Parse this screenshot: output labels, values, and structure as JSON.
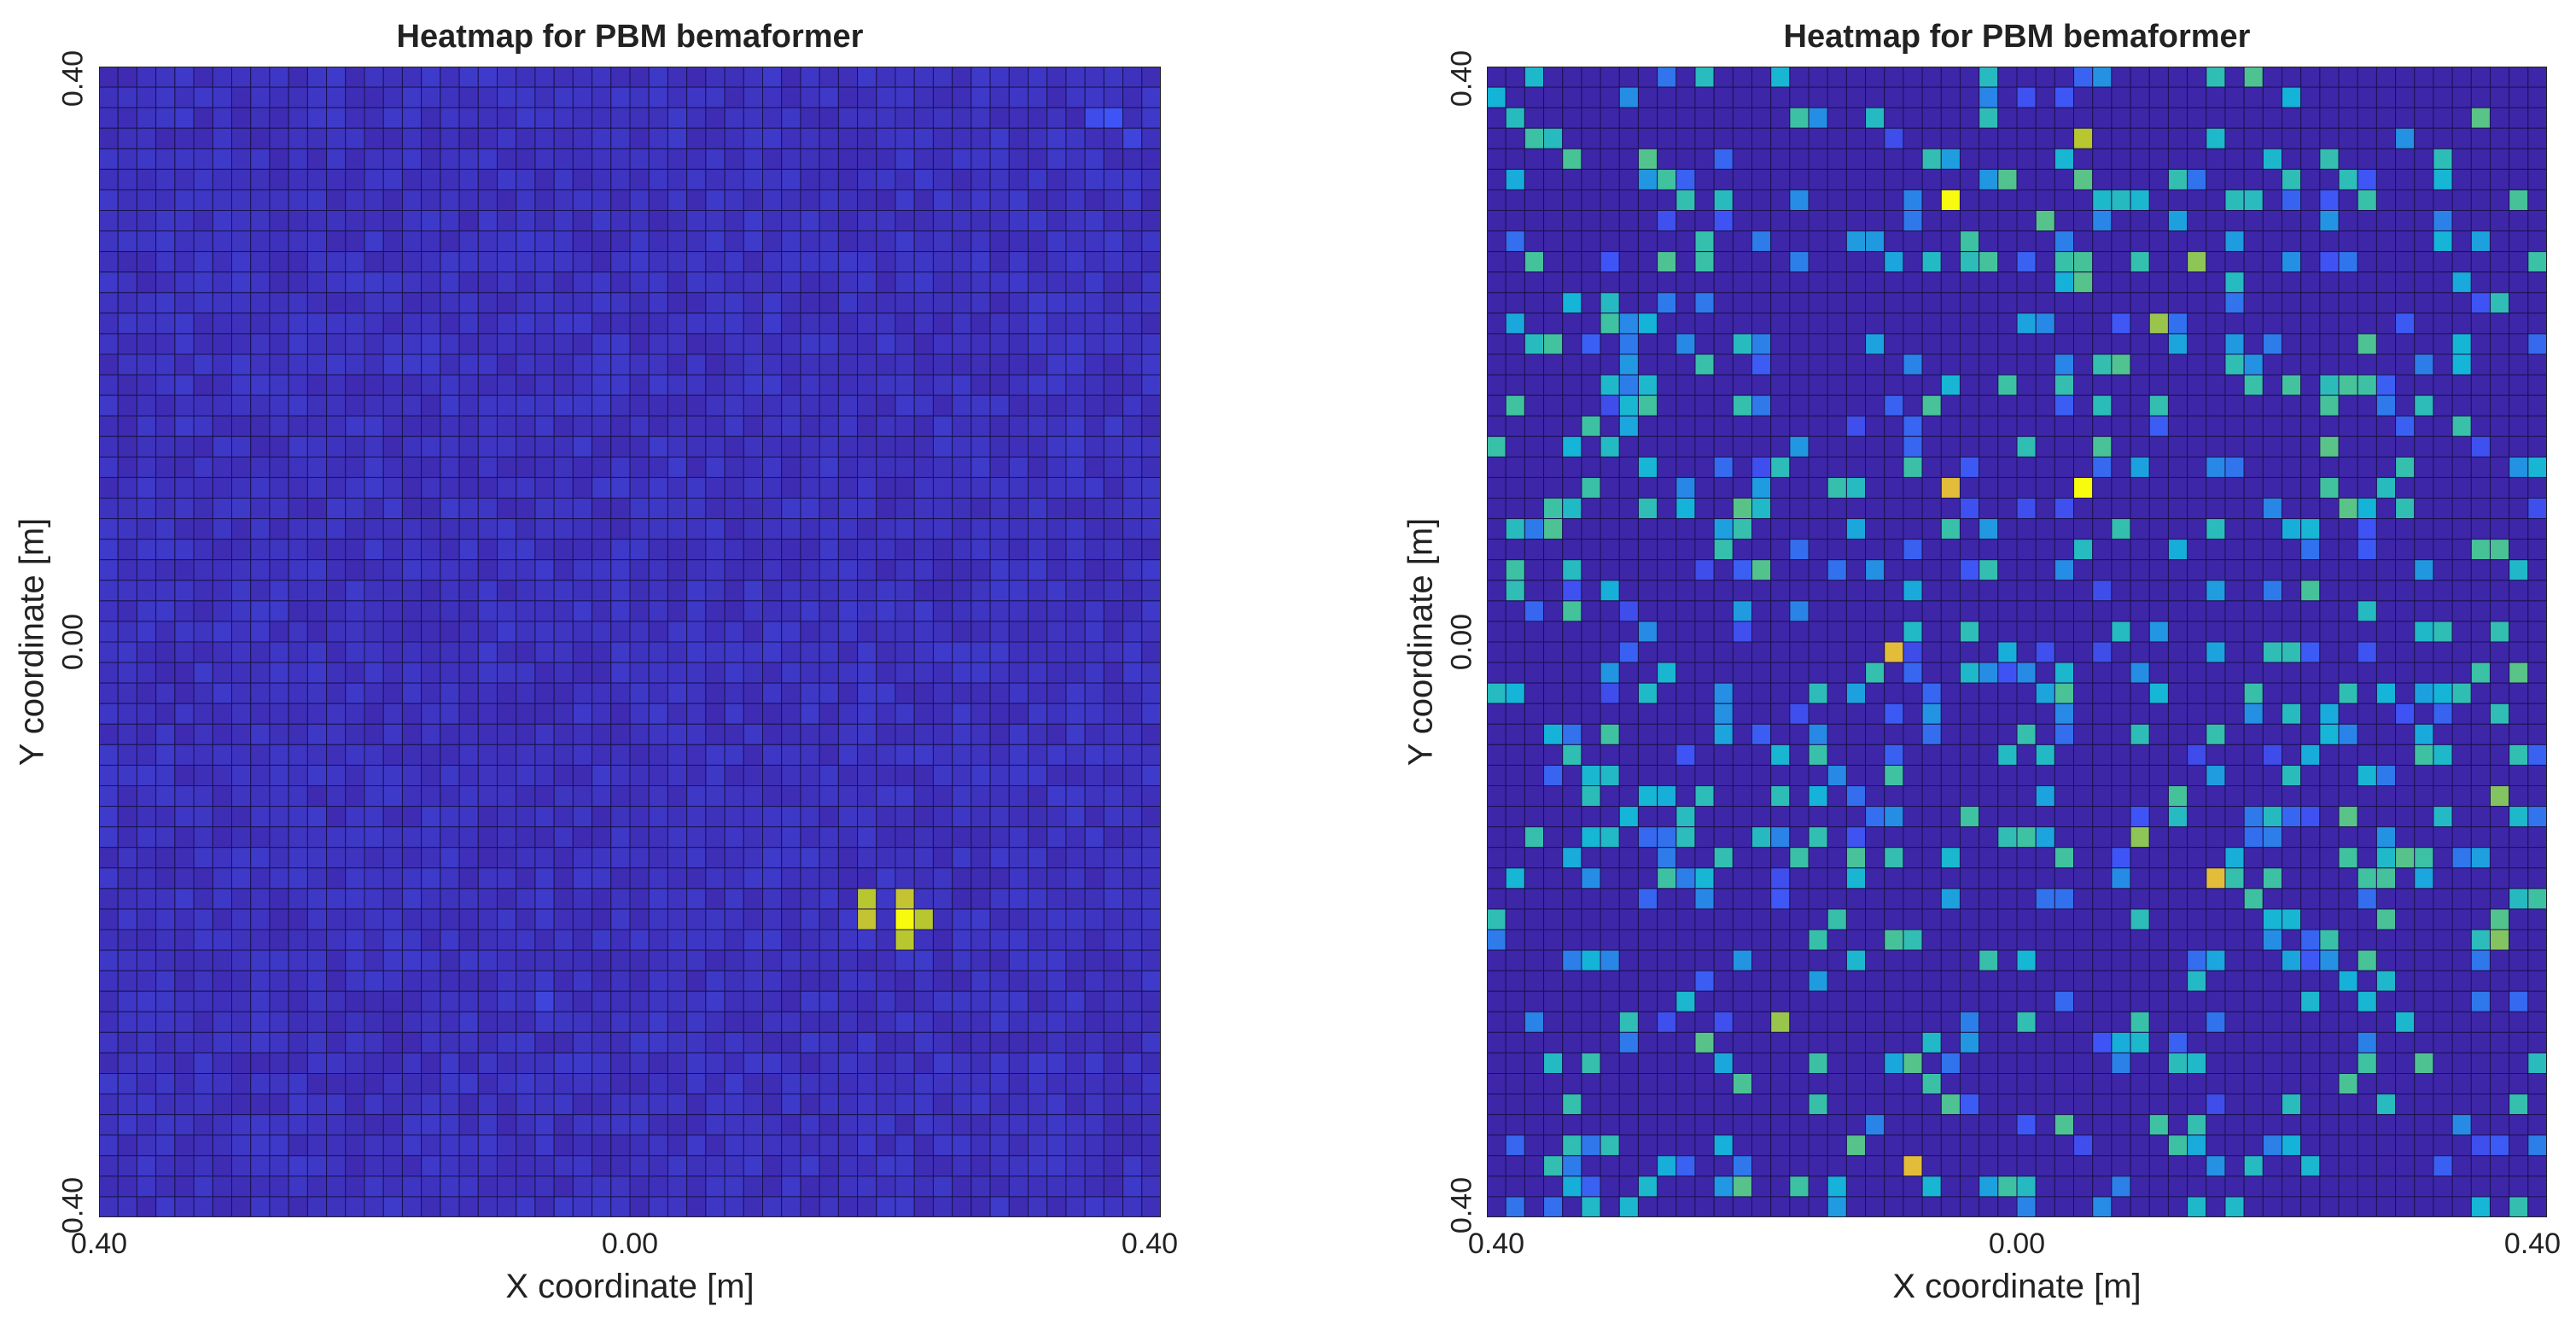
{
  "colors": {
    "low": "#3e26a8",
    "mid_blue": "#3f54f6",
    "cyan": "#14b5d8",
    "teal": "#40c29f",
    "green_yellow": "#b8c630",
    "orange": "#f6b93d",
    "yellow": "#f9fb0e",
    "grid_line": "#1a1352"
  },
  "chart_data": [
    {
      "type": "heatmap",
      "title": "Heatmap for PBM bemaformer",
      "xlabel": "X coordinate [m]",
      "ylabel": "Y coordinate [m]",
      "xlim": [
        -0.4,
        0.4
      ],
      "ylim": [
        -0.4,
        0.4
      ],
      "x_tick_labels": [
        "0.40",
        "0.00",
        "0.40"
      ],
      "y_tick_labels": [
        "0.40",
        "0.00",
        "0.40"
      ],
      "grid": true,
      "colormap": "parula",
      "grid_size": [
        56,
        56
      ],
      "background_value": 0.02,
      "noise_level": 0.06,
      "hotspots": [
        {
          "x": 0.2,
          "y": -0.19,
          "value": 1.0
        },
        {
          "x": 0.2,
          "y": -0.175,
          "value": 0.8
        },
        {
          "x": 0.185,
          "y": -0.175,
          "value": 0.78
        },
        {
          "x": 0.185,
          "y": -0.19,
          "value": 0.8
        },
        {
          "x": 0.215,
          "y": -0.19,
          "value": 0.78
        },
        {
          "x": 0.2,
          "y": -0.205,
          "value": 0.78
        },
        {
          "x": 0.36,
          "y": 0.37,
          "value": 0.18
        },
        {
          "x": 0.345,
          "y": 0.36,
          "value": 0.15
        },
        {
          "x": 0.375,
          "y": 0.355,
          "value": 0.12
        },
        {
          "x": -0.06,
          "y": -0.255,
          "value": 0.12
        }
      ]
    },
    {
      "type": "heatmap",
      "title": "Heatmap for PBM bemaformer",
      "xlabel": "X coordinate [m]",
      "ylabel": "Y coordinate [m]",
      "xlim": [
        -0.4,
        0.4
      ],
      "ylim": [
        -0.4,
        0.4
      ],
      "x_tick_labels": [
        "0.40",
        "0.00",
        "0.40"
      ],
      "y_tick_labels": [
        "0.40",
        "0.00",
        "0.40"
      ],
      "grid": true,
      "colormap": "parula",
      "grid_size": [
        56,
        56
      ],
      "background_value": 0.0,
      "scatter_fraction": 0.2,
      "scatter_value_range": [
        0.15,
        0.6
      ],
      "hotspots": [
        {
          "x": -0.045,
          "y": 0.305,
          "value": 1.0
        },
        {
          "x": 0.045,
          "y": 0.105,
          "value": 1.0
        },
        {
          "x": -0.045,
          "y": 0.105,
          "value": 0.85
        },
        {
          "x": -0.09,
          "y": 0.0,
          "value": 0.85
        },
        {
          "x": 0.145,
          "y": -0.16,
          "value": 0.85
        },
        {
          "x": -0.075,
          "y": -0.365,
          "value": 0.85
        },
        {
          "x": 0.045,
          "y": 0.345,
          "value": 0.78
        },
        {
          "x": 0.135,
          "y": 0.27,
          "value": 0.7
        },
        {
          "x": 0.105,
          "y": 0.225,
          "value": 0.72
        },
        {
          "x": -0.18,
          "y": -0.265,
          "value": 0.72
        },
        {
          "x": 0.095,
          "y": -0.135,
          "value": 0.7
        },
        {
          "x": 0.36,
          "y": -0.205,
          "value": 0.68
        },
        {
          "x": 0.365,
          "y": -0.105,
          "value": 0.68
        }
      ]
    }
  ]
}
